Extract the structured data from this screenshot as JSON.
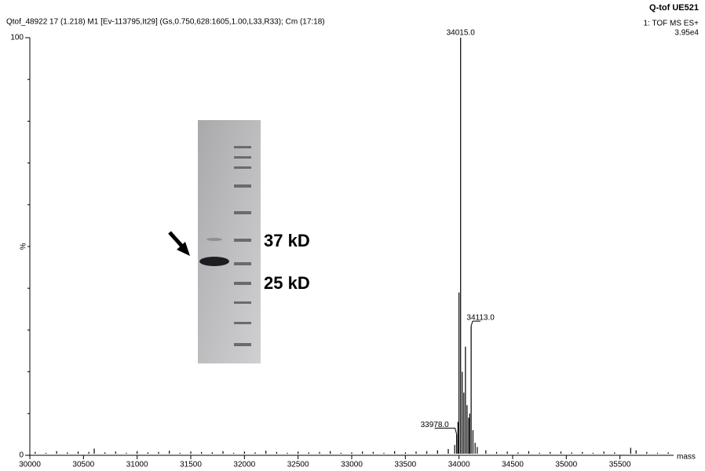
{
  "chart_data": {
    "type": "stick",
    "title": "Q-tof UE521",
    "subtitle": "Qtof_48922  17 (1.218) M1 [Ev-113795,It29] (Gs,0.750,628:1605,1.00,L33,R33); Cm (17:18)",
    "mode": "1: TOF MS ES+",
    "intensity": "3.95e4",
    "xlabel": "mass",
    "ylabel": "%",
    "xlim": [
      30000,
      36000
    ],
    "ylim": [
      0,
      100
    ],
    "xticks": [
      30000,
      30500,
      31000,
      31500,
      32000,
      32500,
      33000,
      33500,
      34000,
      34500,
      35000,
      35500
    ],
    "yticks": [
      0,
      100
    ],
    "color": "#000000",
    "x": [
      30050,
      30150,
      30250,
      30350,
      30450,
      30550,
      30600,
      30700,
      30800,
      30900,
      31000,
      31100,
      31200,
      31300,
      31400,
      31500,
      31600,
      31700,
      31800,
      31900,
      32000,
      32100,
      32200,
      32300,
      32400,
      32500,
      32600,
      32700,
      32800,
      32900,
      33000,
      33100,
      33200,
      33300,
      33400,
      33500,
      33600,
      33700,
      33800,
      33900,
      33960,
      33978,
      33990,
      34000,
      34015,
      34030,
      34045,
      34060,
      34075,
      34090,
      34100,
      34113,
      34130,
      34150,
      34170,
      34250,
      34350,
      34450,
      34550,
      34650,
      34750,
      34850,
      34950,
      35050,
      35150,
      35250,
      35350,
      35450,
      35600,
      35650,
      35750,
      35850,
      35950
    ],
    "values": [
      0.8,
      0.6,
      1.0,
      0.7,
      0.9,
      0.8,
      1.6,
      0.7,
      0.9,
      0.6,
      1.0,
      0.7,
      0.8,
      1.1,
      0.6,
      0.9,
      0.8,
      0.7,
      1.0,
      0.6,
      0.9,
      0.7,
      1.1,
      0.8,
      0.6,
      0.9,
      0.7,
      0.8,
      1.0,
      0.6,
      0.7,
      0.9,
      0.8,
      0.6,
      1.0,
      0.7,
      0.9,
      1.0,
      1.2,
      1.5,
      2.5,
      5,
      8,
      39,
      100,
      20,
      15,
      26,
      12,
      9,
      10,
      31,
      6,
      3,
      2,
      1.2,
      0.8,
      0.9,
      0.7,
      1.0,
      0.6,
      0.8,
      0.9,
      0.7,
      0.8,
      0.6,
      0.9,
      0.7,
      1.8,
      1.2,
      0.8,
      0.6,
      0.7
    ],
    "annotations": [
      {
        "text": "34015.0",
        "x": 34015,
        "y": 100
      },
      {
        "text": "34113.0",
        "x": 34113,
        "y": 31
      },
      {
        "text": "33978.0",
        "x": 33978,
        "y": 5
      }
    ],
    "gel_labels": [
      "37 kD",
      "25 kD"
    ]
  }
}
